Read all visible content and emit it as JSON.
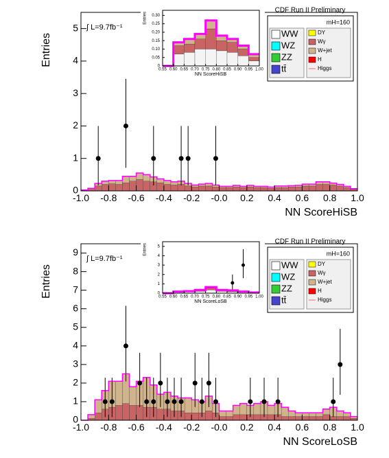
{
  "chart_data": [
    {
      "type": "histogram",
      "title": "CDF Run II Preliminary",
      "annotation": "∫ L=9.7fb⁻¹",
      "mass_label": "mH=160",
      "ylabel": "Entries",
      "xlabel": "NN ScoreHiSB",
      "bins": [
        -1,
        -0.95,
        -0.9,
        -0.85,
        -0.8,
        -0.75,
        -0.7,
        -0.65,
        -0.6,
        -0.55,
        -0.5,
        -0.45,
        -0.4,
        -0.35,
        -0.3,
        -0.25,
        -0.2,
        -0.15,
        -0.1,
        -0.05,
        0,
        0.05,
        0.1,
        0.15,
        0.2,
        0.25,
        0.3,
        0.35,
        0.4,
        0.45,
        0.5,
        0.55,
        0.6,
        0.65,
        0.7,
        0.75,
        0.8,
        0.85,
        0.9,
        0.95,
        1
      ],
      "xlim": [
        -1,
        1
      ],
      "ylim": [
        0,
        5.5
      ],
      "xticks": [
        {
          "value": -1,
          "label": "-1.0"
        },
        {
          "value": -0.8,
          "label": "-0.8"
        },
        {
          "value": -0.6,
          "label": "-0.6"
        },
        {
          "value": -0.4,
          "label": "-0.4"
        },
        {
          "value": -0.2,
          "label": "-0.2"
        },
        {
          "value": 0,
          "label": "-0.0"
        },
        {
          "value": 0.2,
          "label": "0.2"
        },
        {
          "value": 0.4,
          "label": "0.4"
        },
        {
          "value": 0.6,
          "label": "0.6"
        },
        {
          "value": 0.8,
          "label": "0.8"
        },
        {
          "value": 1,
          "label": "1.0"
        }
      ],
      "yticks": [
        0,
        1,
        2,
        3,
        4,
        5
      ],
      "total_color": "#ff00ff",
      "series": [
        {
          "color": "#c86464",
          "values": [
            0.02,
            0.05,
            0.15,
            0.2,
            0.22,
            0.2,
            0.25,
            0.3,
            0.35,
            0.3,
            0.28,
            0.25,
            0.2,
            0.18,
            0.2,
            0.15,
            0.12,
            0.15,
            0.15,
            0.12,
            0.1,
            0.1,
            0.12,
            0.1,
            0.12,
            0.1,
            0.1,
            0.08,
            0.1,
            0.1,
            0.12,
            0.12,
            0.15,
            0.15,
            0.2,
            0.2,
            0.18,
            0.15,
            0.1,
            0.05
          ]
        },
        {
          "color": "#d2b48c",
          "values": [
            0.01,
            0.03,
            0.08,
            0.1,
            0.1,
            0.12,
            0.2,
            0.15,
            0.2,
            0.2,
            0.15,
            0.12,
            0.12,
            0.1,
            0.1,
            0.08,
            0.06,
            0.06,
            0.08,
            0.06,
            0.04,
            0.04,
            0.05,
            0.04,
            0.05,
            0.04,
            0.04,
            0.04,
            0.05,
            0.05,
            0.04,
            0.05,
            0.06,
            0.06,
            0.08,
            0.08,
            0.06,
            0.05,
            0.04,
            0.02
          ]
        }
      ],
      "data_points": {
        "x": [
          -0.875,
          -0.675,
          -0.475,
          -0.275,
          -0.225,
          -0.025
        ],
        "values": [
          1,
          2,
          1,
          1,
          1,
          1
        ],
        "errors_low": [
          0.83,
          1.29,
          0.83,
          0.83,
          0.83,
          0.83
        ],
        "errors_high": [
          1,
          1.45,
          1,
          1,
          1,
          1
        ]
      },
      "legend": [
        {
          "name": "WW",
          "color": "#ffffff"
        },
        {
          "name": "WZ",
          "color": "#00ffff"
        },
        {
          "name": "ZZ",
          "color": "#33cc33"
        },
        {
          "name": "tt̄",
          "color": "#4444cc"
        },
        {
          "name": "DY",
          "color": "#ffff00"
        },
        {
          "name": "Wγ",
          "color": "#c86464"
        },
        {
          "name": "W+jet",
          "color": "#d2b48c"
        },
        {
          "name": "H",
          "color": "#ff0000"
        },
        {
          "name": "Higgs",
          "color": "#ff6666",
          "marker": "line"
        }
      ],
      "inset": {
        "ylabel": "Entries",
        "xlabel": "NN ScoreHiSB",
        "bins": [
          0.55,
          0.6,
          0.65,
          0.7,
          0.75,
          0.8,
          0.85,
          0.9,
          0.95,
          1
        ],
        "xlim": [
          0.55,
          1
        ],
        "ylim": [
          0,
          0.33
        ],
        "xticks": [
          {
            "value": 0.55,
            "label": "0.55"
          },
          {
            "value": 0.6,
            "label": "0.60"
          },
          {
            "value": 0.65,
            "label": "0.65"
          },
          {
            "value": 0.7,
            "label": "0.70"
          },
          {
            "value": 0.75,
            "label": "0.75"
          },
          {
            "value": 0.8,
            "label": "0.80"
          },
          {
            "value": 0.85,
            "label": "0.85"
          },
          {
            "value": 0.9,
            "label": "0.90"
          },
          {
            "value": 0.95,
            "label": "0.95"
          },
          {
            "value": 1,
            "label": "1.00"
          }
        ],
        "yticks": [
          0,
          0.05,
          {
            "value": 0.1,
            "label": "0.10"
          },
          0.15,
          {
            "value": 0.2,
            "label": "0.20"
          },
          0.25,
          {
            "value": 0.3,
            "label": "0.30"
          }
        ],
        "series": [
          {
            "color": "#f4f4f4",
            "values": [
              0,
              0.07,
              0.08,
              0.1,
              0.1,
              0.09,
              0.08,
              0.06,
              0.03
            ]
          },
          {
            "color": "#c86464",
            "values": [
              0,
              0.05,
              0.05,
              0.06,
              0.12,
              0.06,
              0.06,
              0.04,
              0.02
            ]
          },
          {
            "color": "#d2b48c",
            "values": [
              0,
              0.02,
              0.03,
              0.03,
              0.05,
              0.03,
              0.02,
              0.02,
              0.02
            ]
          }
        ]
      }
    },
    {
      "type": "histogram",
      "title": "CDF Run II Preliminary",
      "annotation": "∫ L=9.7fb⁻¹",
      "mass_label": "mH=160",
      "ylabel": "Entries",
      "xlabel": "NN ScoreLoSB",
      "bins": [
        -1,
        -0.95,
        -0.9,
        -0.85,
        -0.8,
        -0.75,
        -0.7,
        -0.65,
        -0.6,
        -0.55,
        -0.5,
        -0.45,
        -0.4,
        -0.35,
        -0.3,
        -0.25,
        -0.2,
        -0.15,
        -0.1,
        -0.05,
        0,
        0.05,
        0.1,
        0.15,
        0.2,
        0.25,
        0.3,
        0.35,
        0.4,
        0.45,
        0.5,
        0.55,
        0.6,
        0.65,
        0.7,
        0.75,
        0.8,
        0.85,
        0.9,
        0.95,
        1
      ],
      "xlim": [
        -1,
        1
      ],
      "ylim": [
        0,
        9.5
      ],
      "xticks": [
        {
          "value": -1,
          "label": "-1.0"
        },
        {
          "value": -0.8,
          "label": "-0.8"
        },
        {
          "value": -0.6,
          "label": "-0.6"
        },
        {
          "value": -0.4,
          "label": "-0.4"
        },
        {
          "value": -0.2,
          "label": "-0.2"
        },
        {
          "value": 0,
          "label": "-0.0"
        },
        {
          "value": 0.2,
          "label": "0.2"
        },
        {
          "value": 0.4,
          "label": "0.4"
        },
        {
          "value": 0.6,
          "label": "0.6"
        },
        {
          "value": 0.8,
          "label": "0.8"
        },
        {
          "value": 1,
          "label": "1.0"
        }
      ],
      "yticks": [
        0,
        1,
        2,
        3,
        4,
        5,
        6,
        7,
        8,
        9
      ],
      "total_color": "#ff00ff",
      "series": [
        {
          "color": "#c86464",
          "values": [
            0,
            0.1,
            0.4,
            0.6,
            0.7,
            0.8,
            0.9,
            0.8,
            0.8,
            0.7,
            0.7,
            0.6,
            0.6,
            0.5,
            0.5,
            0.4,
            0.4,
            0.4,
            0.5,
            0.4,
            0.2,
            0.2,
            0.3,
            0.3,
            0.3,
            0.3,
            0.3,
            0.3,
            0.3,
            0.2,
            0.2,
            0.2,
            0.2,
            0.2,
            0.2,
            0.3,
            0.2,
            0.2,
            0.2,
            0.1
          ]
        },
        {
          "color": "#d2b48c",
          "values": [
            0,
            0.2,
            0.7,
            1.0,
            1.4,
            1.3,
            1.6,
            1.0,
            1.3,
            1.6,
            1.2,
            0.8,
            0.9,
            0.8,
            0.7,
            0.8,
            0.7,
            0.6,
            0.8,
            0.5,
            0.3,
            0.3,
            0.5,
            0.6,
            0.5,
            0.6,
            0.7,
            0.5,
            0.6,
            0.5,
            0.3,
            0.2,
            0.2,
            0.2,
            0.2,
            0.3,
            0.5,
            0.3,
            0.2,
            0.1
          ]
        }
      ],
      "data_points": {
        "x": [
          -0.825,
          -0.775,
          -0.675,
          -0.575,
          -0.525,
          -0.475,
          -0.425,
          -0.375,
          -0.325,
          -0.275,
          -0.175,
          -0.125,
          -0.075,
          -0.025,
          0.225,
          0.325,
          0.425,
          0.825,
          0.875
        ],
        "values": [
          1,
          1,
          4,
          2,
          1,
          1,
          2,
          1,
          1,
          1,
          2,
          1,
          2,
          1,
          1,
          1,
          1,
          1,
          3
        ],
        "errors_low": [
          0.83,
          0.83,
          1.91,
          1.29,
          0.83,
          0.83,
          1.29,
          0.83,
          0.83,
          0.83,
          1.29,
          0.83,
          1.29,
          0.83,
          0.83,
          0.83,
          0.83,
          0.83,
          1.63
        ],
        "errors_high": [
          1.29,
          1.29,
          2.16,
          1.63,
          1.29,
          1.29,
          1.63,
          1.29,
          1.29,
          1.29,
          1.63,
          1.29,
          1.63,
          1.29,
          1.29,
          1.29,
          1.29,
          1.29,
          1.92
        ]
      },
      "legend": [
        {
          "name": "WW",
          "color": "#ffffff"
        },
        {
          "name": "WZ",
          "color": "#00ffff"
        },
        {
          "name": "ZZ",
          "color": "#33cc33"
        },
        {
          "name": "tt̄",
          "color": "#4444cc"
        },
        {
          "name": "DY",
          "color": "#ffff00"
        },
        {
          "name": "Wγ",
          "color": "#c86464"
        },
        {
          "name": "W+jet",
          "color": "#d2b48c"
        },
        {
          "name": "H",
          "color": "#ff0000"
        },
        {
          "name": "Higgs",
          "color": "#ff6666",
          "marker": "line"
        }
      ],
      "inset": {
        "ylabel": "Entries",
        "xlabel": "NN ScoreLoSB",
        "bins": [
          0.55,
          0.6,
          0.65,
          0.7,
          0.75,
          0.8,
          0.85,
          0.9,
          0.95,
          1
        ],
        "xlim": [
          0.55,
          1
        ],
        "ylim": [
          0,
          5.5
        ],
        "xticks": [
          {
            "value": 0.55,
            "label": "0.55"
          },
          {
            "value": 0.6,
            "label": "0.60"
          },
          {
            "value": 0.65,
            "label": "0.65"
          },
          {
            "value": 0.7,
            "label": "0.70"
          },
          {
            "value": 0.75,
            "label": "0.75"
          },
          {
            "value": 0.8,
            "label": "0.80"
          },
          {
            "value": 0.85,
            "label": "0.85"
          },
          {
            "value": 0.9,
            "label": "0.90"
          },
          {
            "value": 0.95,
            "label": "0.95"
          },
          {
            "value": 1,
            "label": "1.00"
          }
        ],
        "yticks": [
          0,
          1,
          2,
          3,
          4,
          5
        ],
        "series": [
          {
            "color": "#f4f4f4",
            "values": [
              0,
              0.1,
              0.15,
              0.2,
              0.35,
              0.2,
              0.15,
              0.1,
              0.05
            ]
          },
          {
            "color": "#c86464",
            "values": [
              0,
              0.05,
              0.05,
              0.1,
              0.2,
              0.1,
              0.1,
              0.05,
              0.02
            ]
          },
          {
            "color": "#d2b48c",
            "values": [
              0,
              0.02,
              0.02,
              0.05,
              0.1,
              0.05,
              0.05,
              0.02,
              0.01
            ]
          }
        ],
        "data_points": {
          "x": [
            0.875,
            0.925
          ],
          "values": [
            1.1,
            3
          ],
          "errors_low": [
            0.7,
            1.4
          ],
          "errors_high": [
            0.9,
            1.7
          ]
        }
      }
    }
  ]
}
